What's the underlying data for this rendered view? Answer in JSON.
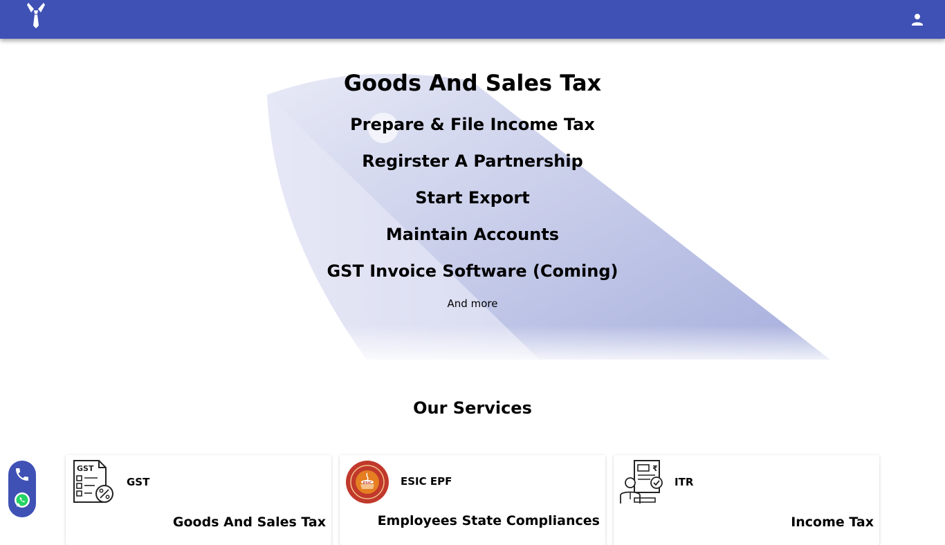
{
  "header": {
    "logo_icon": "tie-logo-icon",
    "account_icon": "person-icon",
    "color": "#3f51b5"
  },
  "hero": {
    "title": "Goods And Sales Tax",
    "items": [
      "Prepare & File Income Tax",
      "Regirster A Partnership",
      "Start Export",
      "Maintain Accounts",
      "GST Invoice Software (Coming)"
    ],
    "more": "And more"
  },
  "services": {
    "title": "Our Services",
    "cards": [
      {
        "name": "GST",
        "icon": "gst-document-icon",
        "description": "Goods And Sales Tax"
      },
      {
        "name": "ESIC EPF",
        "icon": "esic-emblem-icon",
        "description": "Employees State Compliances"
      },
      {
        "name": "ITR",
        "icon": "itr-accountant-icon",
        "description": "Income Tax"
      }
    ]
  },
  "contact": {
    "phone_icon": "phone-icon",
    "whatsapp_icon": "whatsapp-icon"
  }
}
